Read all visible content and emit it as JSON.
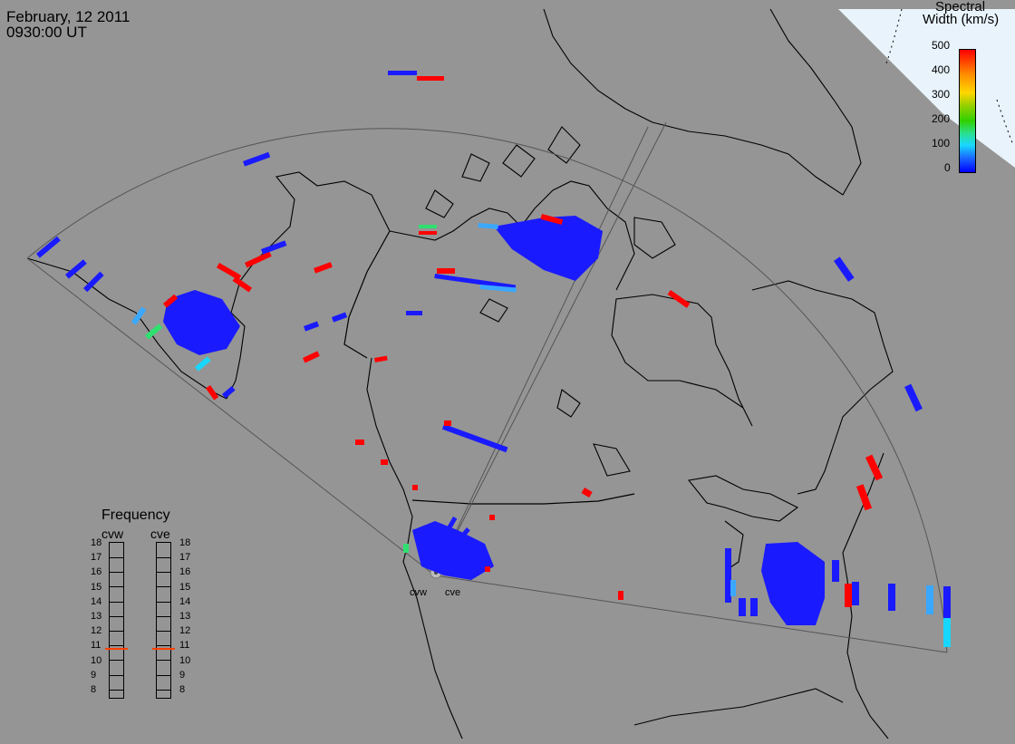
{
  "title": {
    "date": "February, 12 2011",
    "time": "0930:00 UT"
  },
  "colorbar": {
    "title_line1": "Spectral",
    "title_line2": "Width (km/s)",
    "ticks": [
      "500",
      "400",
      "300",
      "200",
      "100",
      "0"
    ],
    "colors": {
      "low": "#0000ff",
      "mid": "#31d000",
      "high": "#ff0000"
    }
  },
  "frequency_panel": {
    "title": "Frequency",
    "radars": [
      "cvw",
      "cve"
    ],
    "ticks": [
      "18",
      "17",
      "16",
      "15",
      "14",
      "13",
      "12",
      "11",
      "10",
      "9",
      "8"
    ],
    "marker_level": 10.8,
    "marker_color": "#ff4000"
  },
  "radar_labels": {
    "west": "cvw",
    "east": "cve"
  },
  "palette": {
    "background": "#959595",
    "coastline": "#000000",
    "fov_line": "#555555",
    "echo_blue": "#1a1aff",
    "echo_red": "#ff0000"
  }
}
